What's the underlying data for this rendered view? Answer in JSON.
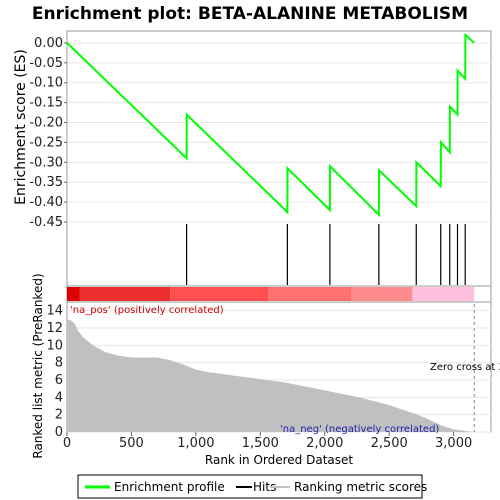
{
  "chart_data": {
    "type": "line",
    "title": "Enrichment plot: BETA-ALANINE METABOLISM",
    "top_panel": {
      "ylabel": "Enrichment score (ES)",
      "ylim": [
        -0.45,
        0.03
      ],
      "yticks": [
        "0.00",
        "-0.05",
        "-0.10",
        "-0.15",
        "-0.20",
        "-0.25",
        "-0.30",
        "-0.35",
        "-0.40",
        "-0.45"
      ],
      "ytick_values": [
        0.0,
        -0.05,
        -0.1,
        -0.15,
        -0.2,
        -0.25,
        -0.3,
        -0.35,
        -0.4,
        -0.45
      ],
      "series": [
        {
          "name": "Enrichment profile",
          "color": "#00ff00",
          "x": [
            0,
            928,
            929,
            1710,
            1711,
            2040,
            2041,
            2420,
            2421,
            2710,
            2711,
            2900,
            2901,
            2970,
            2971,
            3030,
            3031,
            3090,
            3091,
            3160
          ],
          "y": [
            0.0,
            -0.29,
            -0.18,
            -0.425,
            -0.315,
            -0.42,
            -0.31,
            -0.432,
            -0.32,
            -0.41,
            -0.3,
            -0.36,
            -0.25,
            -0.275,
            -0.16,
            -0.18,
            -0.07,
            -0.09,
            0.02,
            0.0
          ]
        }
      ]
    },
    "hits": {
      "name": "Hits",
      "color": "#000000",
      "x": [
        928,
        1710,
        2040,
        2420,
        2710,
        2900,
        2970,
        3030,
        3090
      ]
    },
    "ranking": {
      "name": "Ranking metric scores",
      "ylabel": "Ranked list metric (PreRanked)",
      "xlabel": "Rank in Ordered Dataset",
      "ylim": [
        0,
        15
      ],
      "yticks": [
        "0",
        "2",
        "4",
        "6",
        "8",
        "10",
        "12",
        "14"
      ],
      "ytick_values": [
        0,
        2,
        4,
        6,
        8,
        10,
        12,
        14
      ],
      "xticks": [
        "0",
        "500",
        "1,000",
        "1,500",
        "2,000",
        "2,500",
        "3,000"
      ],
      "xtick_values": [
        0,
        500,
        1000,
        1500,
        2000,
        2500,
        3000
      ],
      "xlim": [
        0,
        3290
      ],
      "fill_color": "#c0c0c0",
      "x": [
        0,
        30,
        60,
        80,
        120,
        200,
        300,
        400,
        500,
        600,
        700,
        800,
        900,
        1000,
        1100,
        1200,
        1300,
        1400,
        1500,
        1600,
        1700,
        1800,
        1900,
        2000,
        2100,
        2200,
        2300,
        2400,
        2500,
        2600,
        2700,
        2800,
        2900,
        3000,
        3100,
        3160
      ],
      "y": [
        13.0,
        12.9,
        12.5,
        11.8,
        11.0,
        10.0,
        9.2,
        8.8,
        8.6,
        8.6,
        8.6,
        8.3,
        7.8,
        7.2,
        6.9,
        6.7,
        6.5,
        6.3,
        6.1,
        5.9,
        5.7,
        5.4,
        5.1,
        4.8,
        4.5,
        4.2,
        3.9,
        3.5,
        3.1,
        2.6,
        2.1,
        1.5,
        0.8,
        0.3,
        0.1,
        0.0
      ],
      "zero_cross_label": "Zero cross at 3",
      "pos_label": "'na_pos' (positively correlated)",
      "neg_label": "'na_neg' (negatively correlated)"
    },
    "legend": {
      "placement": "bottom",
      "items": [
        "Enrichment profile",
        "Hits",
        "Ranking metric scores"
      ]
    }
  },
  "colors": {
    "profile": "#00ff00",
    "hits": "#000000",
    "ranking": "#c0c0c0",
    "pos_text": "#cc0000",
    "neg_text": "#2222aa",
    "band": [
      "#e00000",
      "#ec3030",
      "#ff5050",
      "#ff7070",
      "#ff8c8c",
      "#ffc0e0",
      "#ffe0f0"
    ]
  }
}
